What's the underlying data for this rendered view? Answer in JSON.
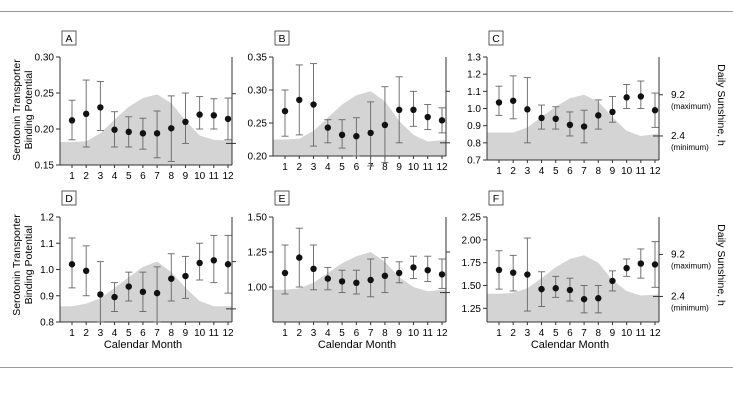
{
  "figure": {
    "left_axis_label_line1": "Serotonin Transporter",
    "left_axis_label_line2": "Binding Potential",
    "right_axis_label": "Daily Sunshine, h",
    "x_axis_label": "Calendar Month",
    "sunshine_max_label": "9.2",
    "sunshine_max_note": "(maximum)",
    "sunshine_min_label": "2.4",
    "sunshine_min_note": "(minimum)"
  },
  "colors": {
    "sunshine_fill": "#d4d4d4",
    "points": "#111111",
    "axes": "#333333"
  },
  "chart_data": [
    {
      "panel": "A",
      "type": "scatter",
      "x": [
        1,
        2,
        3,
        4,
        5,
        6,
        7,
        8,
        9,
        10,
        11,
        12
      ],
      "y": [
        0.212,
        0.221,
        0.23,
        0.199,
        0.196,
        0.194,
        0.194,
        0.201,
        0.21,
        0.22,
        0.219,
        0.214
      ],
      "err_low": [
        0.185,
        0.175,
        0.198,
        0.175,
        0.175,
        0.172,
        0.16,
        0.155,
        0.18,
        0.2,
        0.2,
        0.185
      ],
      "err_high": [
        0.24,
        0.268,
        0.266,
        0.224,
        0.217,
        0.215,
        0.225,
        0.246,
        0.25,
        0.245,
        0.242,
        0.243
      ],
      "ylim": [
        0.15,
        0.3
      ],
      "yticks": [
        0.15,
        0.2,
        0.25,
        0.3
      ],
      "xticks": [
        "1",
        "2",
        "3",
        "4",
        "5",
        "6",
        "7",
        "8",
        "9",
        "10",
        "11",
        "12"
      ],
      "sunshine": [
        0.182,
        0.183,
        0.194,
        0.213,
        0.231,
        0.243,
        0.248,
        0.236,
        0.212,
        0.191,
        0.185,
        0.184
      ],
      "sunshine_range": [
        0.18,
        0.249
      ]
    },
    {
      "panel": "B",
      "type": "scatter",
      "x": [
        1,
        2,
        3,
        4,
        5,
        6,
        7,
        8,
        9,
        10,
        11,
        12
      ],
      "y": [
        0.268,
        0.285,
        0.278,
        0.243,
        0.232,
        0.23,
        0.235,
        0.247,
        0.27,
        0.27,
        0.259,
        0.254
      ],
      "err_low": [
        0.23,
        0.232,
        0.215,
        0.22,
        0.212,
        0.2,
        0.185,
        0.19,
        0.22,
        0.245,
        0.24,
        0.235
      ],
      "err_high": [
        0.3,
        0.338,
        0.34,
        0.255,
        0.255,
        0.258,
        0.282,
        0.305,
        0.32,
        0.298,
        0.278,
        0.273
      ],
      "ylim": [
        0.2,
        0.35
      ],
      "yticks": [
        0.2,
        0.25,
        0.3,
        0.35
      ],
      "xticks": [
        "1",
        "2",
        "3",
        "4",
        "5",
        "6",
        "7",
        "8",
        "9",
        "10",
        "11",
        "12"
      ],
      "sunshine": [
        0.225,
        0.226,
        0.238,
        0.258,
        0.278,
        0.292,
        0.298,
        0.283,
        0.253,
        0.232,
        0.222,
        0.224
      ],
      "sunshine_range": [
        0.22,
        0.298
      ]
    },
    {
      "panel": "C",
      "type": "scatter",
      "x": [
        1,
        2,
        3,
        4,
        5,
        6,
        7,
        8,
        9,
        10,
        11,
        12
      ],
      "y": [
        1.035,
        1.045,
        0.995,
        0.945,
        0.94,
        0.905,
        0.895,
        0.96,
        0.98,
        1.065,
        1.07,
        0.99
      ],
      "err_low": [
        0.96,
        0.94,
        0.8,
        0.88,
        0.88,
        0.84,
        0.8,
        0.88,
        0.92,
        1.0,
        1.0,
        0.89
      ],
      "err_high": [
        1.13,
        1.19,
        1.18,
        1.02,
        1.01,
        0.98,
        0.99,
        1.05,
        1.07,
        1.14,
        1.16,
        1.09
      ],
      "ylim": [
        0.7,
        1.3
      ],
      "yticks": [
        0.7,
        0.8,
        0.9,
        1.0,
        1.1,
        1.2,
        1.3
      ],
      "xticks": [
        "1",
        "2",
        "3",
        "4",
        "5",
        "6",
        "7",
        "8",
        "9",
        "10",
        "11",
        "12"
      ],
      "sunshine": [
        0.86,
        0.86,
        0.89,
        0.95,
        1.01,
        1.06,
        1.08,
        1.04,
        0.95,
        0.87,
        0.84,
        0.85
      ],
      "sunshine_range": [
        0.84,
        1.08
      ]
    },
    {
      "panel": "D",
      "type": "scatter",
      "x": [
        1,
        2,
        3,
        4,
        5,
        6,
        7,
        8,
        9,
        10,
        11,
        12
      ],
      "y": [
        1.02,
        0.995,
        0.905,
        0.895,
        0.935,
        0.915,
        0.91,
        0.965,
        0.975,
        1.025,
        1.035,
        1.02
      ],
      "err_low": [
        0.93,
        0.9,
        0.8,
        0.84,
        0.88,
        0.84,
        0.8,
        0.88,
        0.89,
        0.96,
        0.95,
        0.91
      ],
      "err_high": [
        1.12,
        1.09,
        1.03,
        0.95,
        0.99,
        0.99,
        1.01,
        1.06,
        1.05,
        1.1,
        1.13,
        1.13
      ],
      "ylim": [
        0.8,
        1.2
      ],
      "yticks": [
        0.8,
        0.9,
        1.0,
        1.1,
        1.2
      ],
      "xticks": [
        "1",
        "2",
        "3",
        "4",
        "5",
        "6",
        "7",
        "8",
        "9",
        "10",
        "11",
        "12"
      ],
      "sunshine": [
        0.86,
        0.87,
        0.89,
        0.93,
        0.97,
        1.01,
        1.03,
        0.99,
        0.93,
        0.88,
        0.86,
        0.86
      ],
      "sunshine_range": [
        0.85,
        1.03
      ]
    },
    {
      "panel": "E",
      "type": "scatter",
      "x": [
        1,
        2,
        3,
        4,
        5,
        6,
        7,
        8,
        9,
        10,
        11,
        12
      ],
      "y": [
        1.1,
        1.21,
        1.13,
        1.06,
        1.04,
        1.03,
        1.05,
        1.08,
        1.1,
        1.14,
        1.12,
        1.09
      ],
      "err_low": [
        0.95,
        1.0,
        0.98,
        0.98,
        0.96,
        0.95,
        0.93,
        0.96,
        1.03,
        1.06,
        1.04,
        0.99
      ],
      "err_high": [
        1.3,
        1.42,
        1.3,
        1.14,
        1.12,
        1.12,
        1.2,
        1.21,
        1.18,
        1.22,
        1.22,
        1.2
      ],
      "ylim": [
        0.75,
        1.5
      ],
      "yticks": [
        1.0,
        1.25,
        1.5
      ],
      "xticks": [
        "1",
        "2",
        "3",
        "4",
        "5",
        "6",
        "7",
        "8",
        "9",
        "10",
        "11",
        "12"
      ],
      "sunshine": [
        0.98,
        0.99,
        1.03,
        1.1,
        1.17,
        1.22,
        1.25,
        1.18,
        1.07,
        1.0,
        0.97,
        0.98
      ],
      "sunshine_range": [
        0.96,
        1.25
      ]
    },
    {
      "panel": "F",
      "type": "scatter",
      "x": [
        1,
        2,
        3,
        4,
        5,
        6,
        7,
        8,
        9,
        10,
        11,
        12
      ],
      "y": [
        1.67,
        1.64,
        1.62,
        1.46,
        1.47,
        1.45,
        1.35,
        1.36,
        1.55,
        1.69,
        1.74,
        1.73
      ],
      "err_low": [
        1.46,
        1.44,
        1.22,
        1.27,
        1.37,
        1.33,
        1.2,
        1.2,
        1.44,
        1.6,
        1.58,
        1.48
      ],
      "err_high": [
        1.88,
        1.83,
        2.02,
        1.65,
        1.6,
        1.58,
        1.5,
        1.5,
        1.66,
        1.79,
        1.9,
        1.98
      ],
      "ylim": [
        1.1,
        2.25
      ],
      "yticks": [
        1.25,
        1.5,
        1.75,
        2.0,
        2.25
      ],
      "xticks": [
        "1",
        "2",
        "3",
        "4",
        "5",
        "6",
        "7",
        "8",
        "9",
        "10",
        "11",
        "12"
      ],
      "sunshine": [
        1.41,
        1.42,
        1.47,
        1.58,
        1.7,
        1.79,
        1.83,
        1.75,
        1.56,
        1.44,
        1.39,
        1.4
      ],
      "sunshine_range": [
        1.38,
        1.84
      ]
    }
  ]
}
